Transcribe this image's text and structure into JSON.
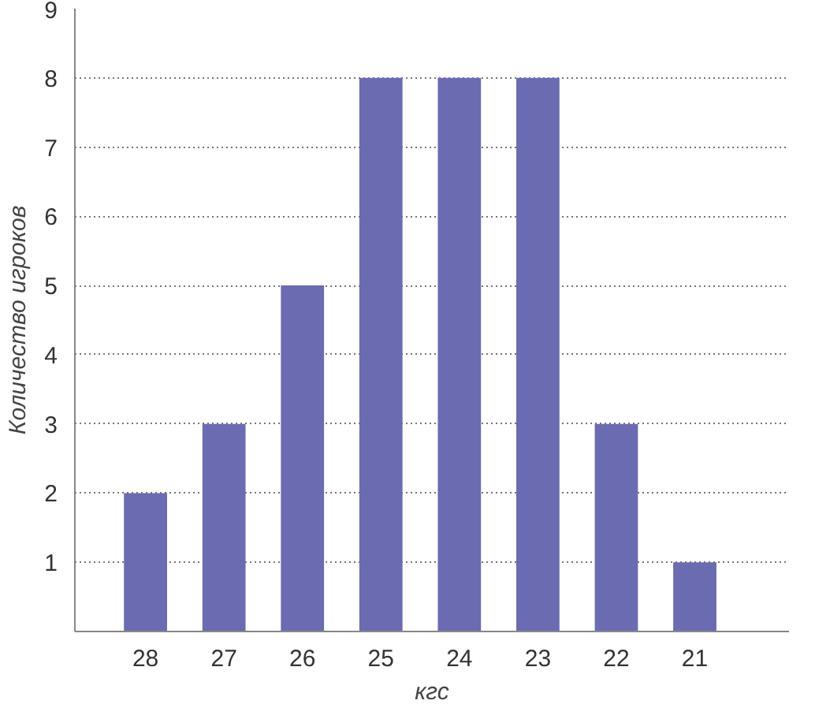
{
  "chart_data": {
    "type": "bar",
    "categories": [
      "28",
      "27",
      "26",
      "25",
      "24",
      "23",
      "22",
      "21"
    ],
    "values": [
      2,
      3,
      5,
      8,
      8,
      8,
      3,
      1
    ],
    "color": "#6b6bb2",
    "xlabel": "кгс",
    "ylabel": "Количество игроков",
    "ylim": [
      0,
      9
    ],
    "yticks": [
      1,
      2,
      3,
      4,
      5,
      6,
      7,
      8,
      9
    ],
    "grid": "y"
  }
}
